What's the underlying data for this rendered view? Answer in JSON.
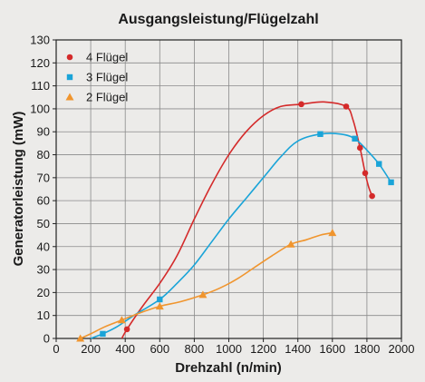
{
  "chart_data": {
    "type": "line",
    "title": "Ausgangsleistung/Flügelzahl",
    "xlabel": "Drehzahl (n/min)",
    "ylabel": "Generatorleistung (mW)",
    "xlim": [
      0,
      2000
    ],
    "ylim": [
      0,
      130
    ],
    "xticks": [
      0,
      200,
      400,
      600,
      800,
      1000,
      1200,
      1400,
      1600,
      1800,
      2000
    ],
    "yticks": [
      0,
      10,
      20,
      30,
      40,
      50,
      60,
      70,
      80,
      90,
      100,
      110,
      120,
      130
    ],
    "grid": true,
    "legend_position": "top-left",
    "series": [
      {
        "name": "4 Flügel",
        "color": "#d42a2a",
        "marker": "circle",
        "points": [
          [
            410,
            4
          ],
          [
            1420,
            102
          ],
          [
            1680,
            101
          ],
          [
            1760,
            83
          ],
          [
            1790,
            72
          ],
          [
            1830,
            62
          ]
        ],
        "curve": [
          [
            380,
            0
          ],
          [
            410,
            4
          ],
          [
            500,
            14
          ],
          [
            600,
            24
          ],
          [
            700,
            36
          ],
          [
            800,
            52
          ],
          [
            900,
            67
          ],
          [
            1000,
            80
          ],
          [
            1100,
            90
          ],
          [
            1200,
            97
          ],
          [
            1300,
            101
          ],
          [
            1420,
            102
          ],
          [
            1550,
            103
          ],
          [
            1680,
            101
          ],
          [
            1720,
            95
          ],
          [
            1760,
            83
          ],
          [
            1790,
            72
          ],
          [
            1810,
            66
          ],
          [
            1830,
            62
          ]
        ]
      },
      {
        "name": "3 Flügel",
        "color": "#1aa4d8",
        "marker": "square",
        "points": [
          [
            270,
            2
          ],
          [
            600,
            17
          ],
          [
            1530,
            89
          ],
          [
            1730,
            87
          ],
          [
            1870,
            76
          ],
          [
            1940,
            68
          ]
        ],
        "curve": [
          [
            200,
            0
          ],
          [
            270,
            2
          ],
          [
            350,
            5
          ],
          [
            450,
            10
          ],
          [
            600,
            17
          ],
          [
            700,
            24
          ],
          [
            800,
            32
          ],
          [
            900,
            42
          ],
          [
            1000,
            52
          ],
          [
            1100,
            61
          ],
          [
            1200,
            70
          ],
          [
            1300,
            79
          ],
          [
            1400,
            86
          ],
          [
            1530,
            89
          ],
          [
            1650,
            89
          ],
          [
            1730,
            87
          ],
          [
            1800,
            82
          ],
          [
            1870,
            76
          ],
          [
            1940,
            68
          ]
        ]
      },
      {
        "name": "2 Flügel",
        "color": "#f0952e",
        "marker": "triangle",
        "points": [
          [
            140,
            0
          ],
          [
            380,
            8
          ],
          [
            600,
            14
          ],
          [
            850,
            19
          ],
          [
            1360,
            41
          ],
          [
            1600,
            46
          ]
        ],
        "curve": [
          [
            140,
            0
          ],
          [
            200,
            2
          ],
          [
            280,
            5
          ],
          [
            380,
            8
          ],
          [
            480,
            11
          ],
          [
            600,
            14
          ],
          [
            720,
            16
          ],
          [
            850,
            19
          ],
          [
            950,
            22
          ],
          [
            1050,
            26
          ],
          [
            1150,
            31
          ],
          [
            1250,
            36
          ],
          [
            1360,
            41
          ],
          [
            1450,
            43
          ],
          [
            1530,
            45
          ],
          [
            1600,
            46
          ]
        ]
      }
    ]
  }
}
